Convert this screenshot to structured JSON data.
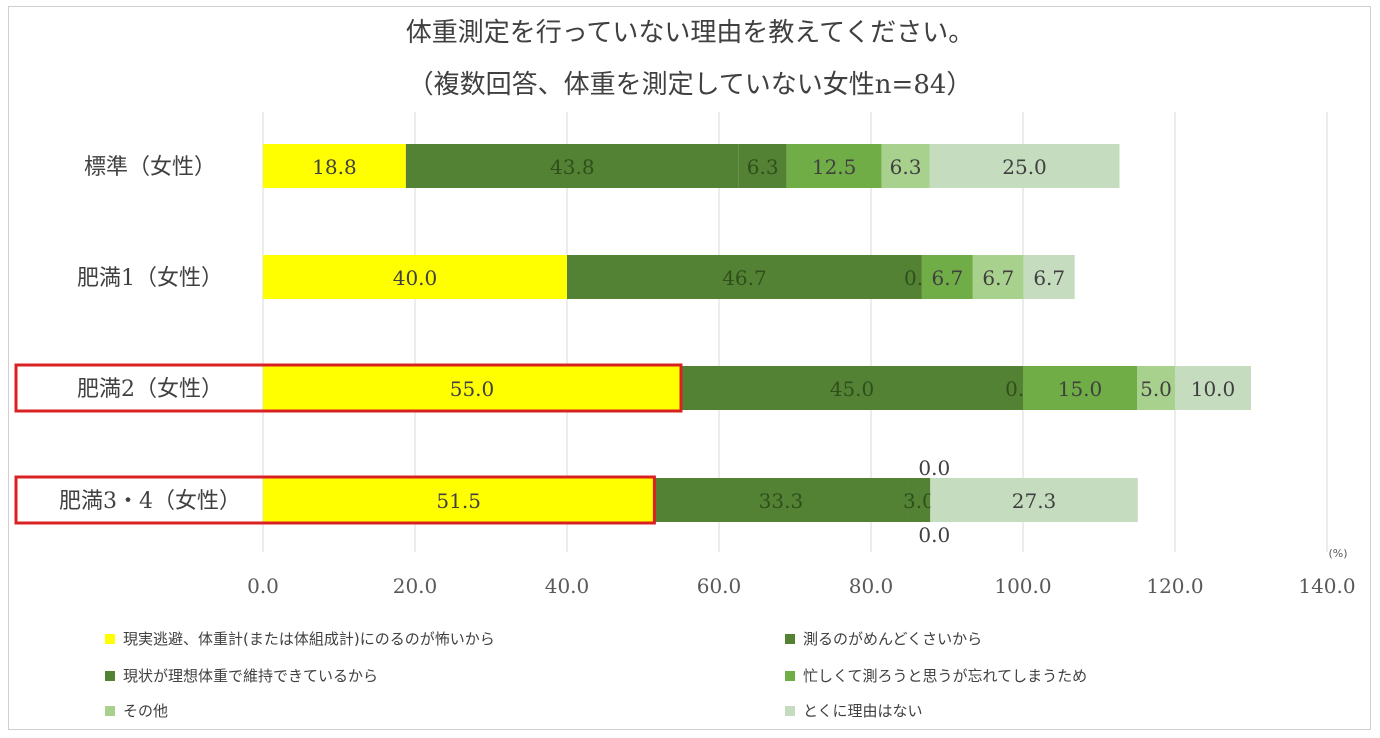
{
  "chart_data": {
    "type": "bar",
    "orientation": "horizontal",
    "stacked": true,
    "title": "体重測定を行っていない理由を教えてください。",
    "subtitle": "（複数回答、体重を測定していない女性n=84）",
    "unit_label": "(%)",
    "categories": [
      "標準（女性）",
      "肥満1（女性）",
      "肥満2（女性）",
      "肥満3・4（女性）"
    ],
    "highlighted_categories": [
      "肥満2（女性）",
      "肥満3・4（女性）"
    ],
    "xlim": [
      0,
      140
    ],
    "xticks": [
      "0.0",
      "20.0",
      "40.0",
      "60.0",
      "80.0",
      "100.0",
      "120.0",
      "140.0"
    ],
    "grid": true,
    "legend_position": "bottom",
    "series": [
      {
        "name": "現実逃避、体重計(または体組成計)にのるのが怖いから",
        "color": "#ffff00",
        "values": [
          18.8,
          40.0,
          55.0,
          51.5
        ],
        "labels": [
          "18.8",
          "40.0",
          "55.0",
          "51.5"
        ]
      },
      {
        "name": "測るのがめんどくさいから",
        "color": "#548235",
        "values": [
          43.8,
          46.7,
          45.0,
          33.3
        ],
        "labels": [
          "43.8",
          "46.7",
          "45.0",
          "33.3"
        ]
      },
      {
        "name": "現状が理想体重で維持できているから",
        "color": "#548235",
        "values": [
          6.3,
          0.0,
          0.0,
          3.0
        ],
        "labels": [
          "6.3",
          "0.0",
          "0.0",
          "3.0"
        ]
      },
      {
        "name": "忙しくて測ろうと思うが忘れてしまうため",
        "color": "#70ad47",
        "values": [
          12.5,
          6.7,
          15.0,
          0.0
        ],
        "labels": [
          "12.5",
          "6.7",
          "15.0",
          "0.0"
        ]
      },
      {
        "name": "その他",
        "color": "#a9d18e",
        "values": [
          6.3,
          6.7,
          5.0,
          0.0
        ],
        "labels": [
          "6.3",
          "6.7",
          "5.0",
          "0.0"
        ]
      },
      {
        "name": "とくに理由はない",
        "color": "#c5dcbf",
        "values": [
          25.0,
          6.7,
          10.0,
          27.3
        ],
        "labels": [
          "25.0",
          "6.7",
          "10.0",
          "27.3"
        ]
      }
    ]
  }
}
